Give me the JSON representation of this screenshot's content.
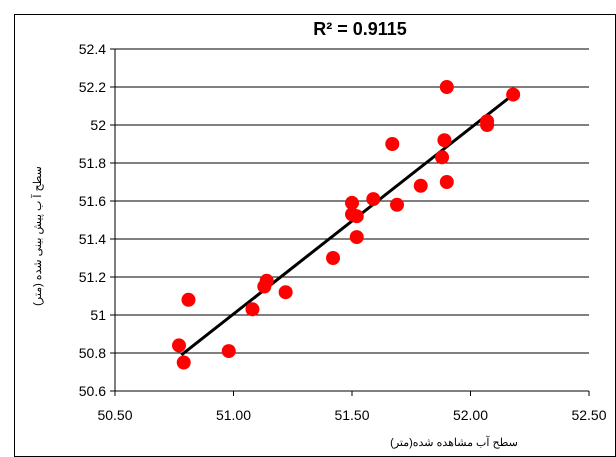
{
  "chart_data": {
    "type": "scatter",
    "title": "R² = 0.9115",
    "xlabel": "سطح آب مشاهده شده(متر)",
    "ylabel": "سطح آ ب پیش بینی شده (متر)",
    "xlim": [
      50.5,
      52.5
    ],
    "ylim": [
      50.6,
      52.4
    ],
    "x_ticks": [
      "50.50",
      "51.00",
      "51.50",
      "52.00",
      "52.50"
    ],
    "y_ticks": [
      "50.6",
      "50.8",
      "51",
      "51.2",
      "51.4",
      "51.6",
      "51.8",
      "52",
      "52.2",
      "52.4"
    ],
    "grid": "horizontal",
    "marker_color": "#ff0000",
    "trendline_color": "#000000",
    "trendline": {
      "x": [
        50.78,
        52.18
      ],
      "y": [
        50.79,
        52.16
      ]
    },
    "points": [
      {
        "x": 50.77,
        "y": 50.84
      },
      {
        "x": 50.79,
        "y": 50.75
      },
      {
        "x": 50.81,
        "y": 51.08
      },
      {
        "x": 50.98,
        "y": 50.81
      },
      {
        "x": 51.08,
        "y": 51.03
      },
      {
        "x": 51.13,
        "y": 51.15
      },
      {
        "x": 51.14,
        "y": 51.18
      },
      {
        "x": 51.22,
        "y": 51.12
      },
      {
        "x": 51.42,
        "y": 51.3
      },
      {
        "x": 51.5,
        "y": 51.53
      },
      {
        "x": 51.5,
        "y": 51.59
      },
      {
        "x": 51.52,
        "y": 51.52
      },
      {
        "x": 51.52,
        "y": 51.41
      },
      {
        "x": 51.59,
        "y": 51.61
      },
      {
        "x": 51.67,
        "y": 51.9
      },
      {
        "x": 51.69,
        "y": 51.58
      },
      {
        "x": 51.79,
        "y": 51.68
      },
      {
        "x": 51.88,
        "y": 51.83
      },
      {
        "x": 51.89,
        "y": 51.92
      },
      {
        "x": 51.9,
        "y": 51.7
      },
      {
        "x": 51.9,
        "y": 52.2
      },
      {
        "x": 52.07,
        "y": 52.02
      },
      {
        "x": 52.07,
        "y": 52.0
      },
      {
        "x": 52.18,
        "y": 52.16
      }
    ]
  }
}
